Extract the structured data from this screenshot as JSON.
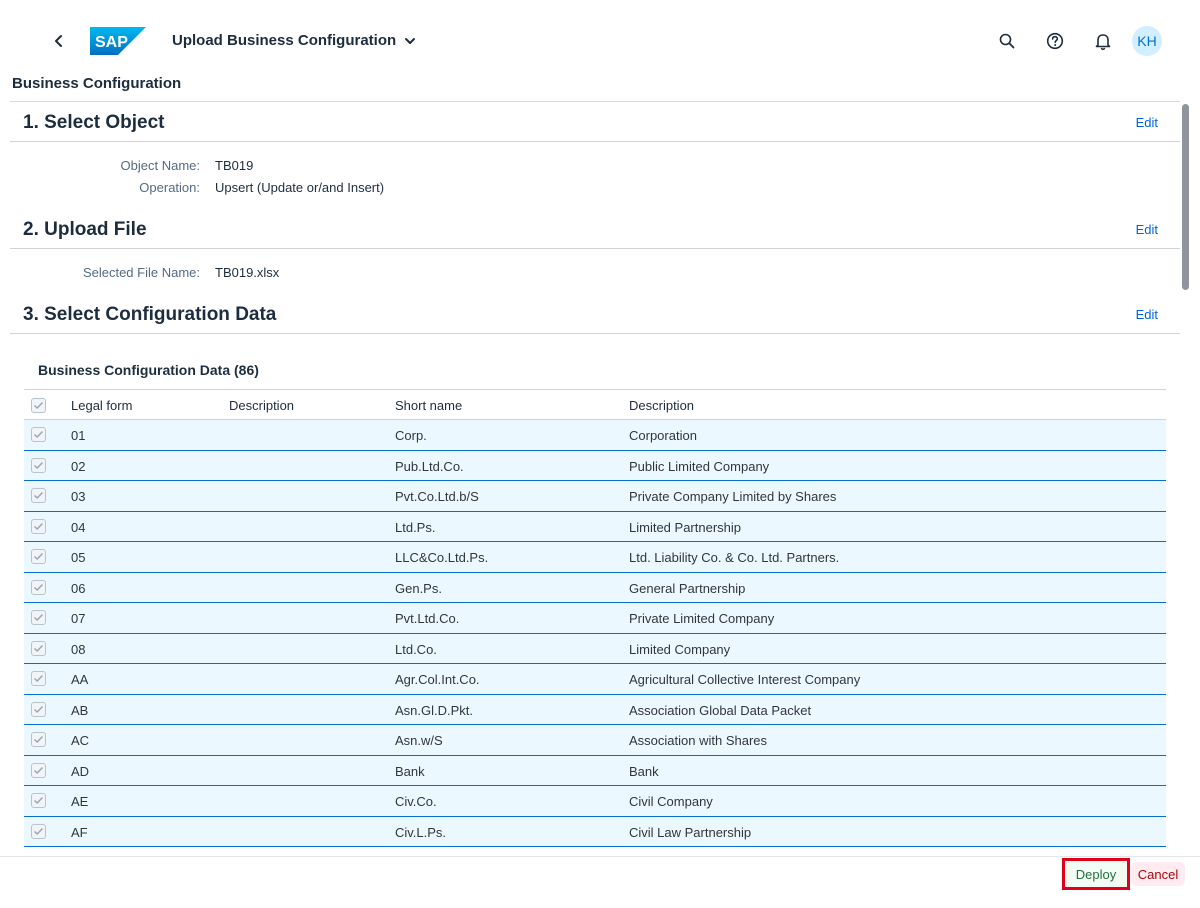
{
  "shell": {
    "back_icon": "chevron-left-icon",
    "logo_text": "SAP",
    "app_title": "Upload Business Configuration",
    "avatar_initials": "KH",
    "brand_color": "#0a6ed1"
  },
  "page": {
    "header": "Business Configuration"
  },
  "steps": {
    "step1": {
      "title": "1. Select Object",
      "edit_label": "Edit",
      "fields": [
        {
          "label": "Object Name:",
          "value": "TB019"
        },
        {
          "label": "Operation:",
          "value": "Upsert (Update or/and Insert)"
        }
      ]
    },
    "step2": {
      "title": "2. Upload File",
      "edit_label": "Edit",
      "fields": [
        {
          "label": "Selected File Name:",
          "value": "TB019.xlsx"
        }
      ]
    },
    "step3": {
      "title": "3. Select Configuration Data",
      "edit_label": "Edit"
    }
  },
  "table": {
    "title": "Business Configuration Data (86)",
    "columns": [
      "Legal form",
      "Description",
      "Short name",
      "Description"
    ],
    "rows": [
      {
        "legal_form": "01",
        "description": "",
        "short_name": "Corp.",
        "long_description": "Corporation"
      },
      {
        "legal_form": "02",
        "description": "",
        "short_name": "Pub.Ltd.Co.",
        "long_description": "Public Limited Company"
      },
      {
        "legal_form": "03",
        "description": "",
        "short_name": "Pvt.Co.Ltd.b/S",
        "long_description": "Private Company Limited by Shares"
      },
      {
        "legal_form": "04",
        "description": "",
        "short_name": "Ltd.Ps.",
        "long_description": "Limited Partnership"
      },
      {
        "legal_form": "05",
        "description": "",
        "short_name": "LLC&Co.Ltd.Ps.",
        "long_description": "Ltd. Liability Co. & Co. Ltd. Partners."
      },
      {
        "legal_form": "06",
        "description": "",
        "short_name": "Gen.Ps.",
        "long_description": "General Partnership"
      },
      {
        "legal_form": "07",
        "description": "",
        "short_name": "Pvt.Ltd.Co.",
        "long_description": "Private Limited Company"
      },
      {
        "legal_form": "08",
        "description": "",
        "short_name": "Ltd.Co.",
        "long_description": "Limited Company"
      },
      {
        "legal_form": "AA",
        "description": "",
        "short_name": "Agr.Col.Int.Co.",
        "long_description": "Agricultural Collective Interest Company"
      },
      {
        "legal_form": "AB",
        "description": "",
        "short_name": "Asn.Gl.D.Pkt.",
        "long_description": "Association Global Data Packet"
      },
      {
        "legal_form": "AC",
        "description": "",
        "short_name": "Asn.w/S",
        "long_description": "Association with Shares"
      },
      {
        "legal_form": "AD",
        "description": "",
        "short_name": "Bank",
        "long_description": "Bank"
      },
      {
        "legal_form": "AE",
        "description": "",
        "short_name": "Civ.Co.",
        "long_description": "Civil Company"
      },
      {
        "legal_form": "AF",
        "description": "",
        "short_name": "Civ.L.Ps.",
        "long_description": "Civil Law Partnership"
      }
    ]
  },
  "footer": {
    "deploy_label": "Deploy",
    "cancel_label": "Cancel"
  }
}
